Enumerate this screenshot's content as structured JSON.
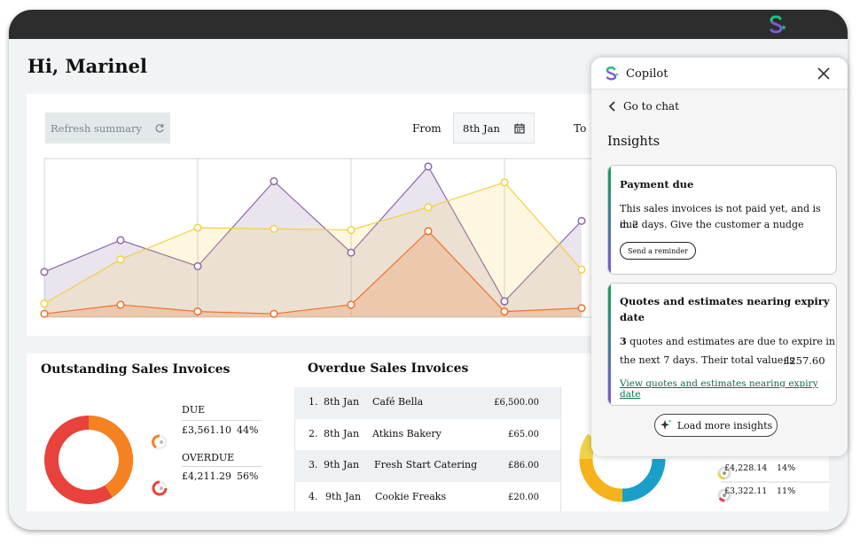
{
  "greeting": "Hi, Marinel",
  "summary": {
    "refresh_label": "Refresh summary",
    "from_label": "From",
    "from_value": "8th Jan",
    "to_label": "To"
  },
  "chart_data": {
    "type": "area",
    "title": "",
    "xlabel": "",
    "ylabel": "",
    "grid": true,
    "series": [
      {
        "color": "#8b6aa8",
        "values": [
          40,
          68,
          45,
          120,
          57,
          133,
          14,
          85
        ]
      },
      {
        "color": "#f4d03f",
        "values": [
          12,
          51,
          79,
          78,
          77,
          97,
          119,
          42
        ]
      },
      {
        "color": "#f0712a",
        "values": [
          3,
          11,
          5,
          3,
          11,
          76,
          5,
          8
        ]
      }
    ]
  },
  "outstanding": {
    "title": "Outstanding Sales Invoices",
    "due_label": "DUE",
    "due_amount": "£3,561.10",
    "due_pct": "44%",
    "overdue_label": "OVERDUE",
    "overdue_amount": "£4,211.29",
    "overdue_pct": "56%",
    "due_color": "#f58220",
    "overdue_color": "#e8423c"
  },
  "overdue": {
    "title": "Overdue Sales Invoices",
    "rows": [
      {
        "num": "1.",
        "date": "8th Jan",
        "name": "Café Bella",
        "amount": "£6,500.00"
      },
      {
        "num": "2.",
        "date": "8th Jan",
        "name": "Atkins Bakery",
        "amount": "£65.00"
      },
      {
        "num": "3.",
        "date": "9th Jan",
        "name": "Fresh Start Catering",
        "amount": "£86.00"
      },
      {
        "num": "4.",
        "date": "9th Jan",
        "name": "Cookie Freaks",
        "amount": "£20.00"
      }
    ]
  },
  "right_partial": {
    "row1_amount": "£4,228.14",
    "row1_pct": "14%",
    "row2_amount": "£3,322.11",
    "row2_pct": "11%"
  },
  "copilot": {
    "title": "Copilot",
    "back_label": "Go to chat",
    "insights_heading": "Insights",
    "card1": {
      "title": "Payment due",
      "body_line1": "This sales invoices is not paid yet, and is due",
      "body_line2": "in 2 days. Give the customer a nudge",
      "button": "Send a reminder"
    },
    "card2": {
      "title_line1": "Quotes and estimates nearing expiry",
      "title_line2": "date",
      "count": "3",
      "body_line1_rest": " quotes and estimates are due to expire in",
      "body_line2": "the next 7 days. Their total value is",
      "value": "£257.60",
      "link": "View quotes and estimates nearing expiry date"
    },
    "load_more": "Load more insights"
  }
}
